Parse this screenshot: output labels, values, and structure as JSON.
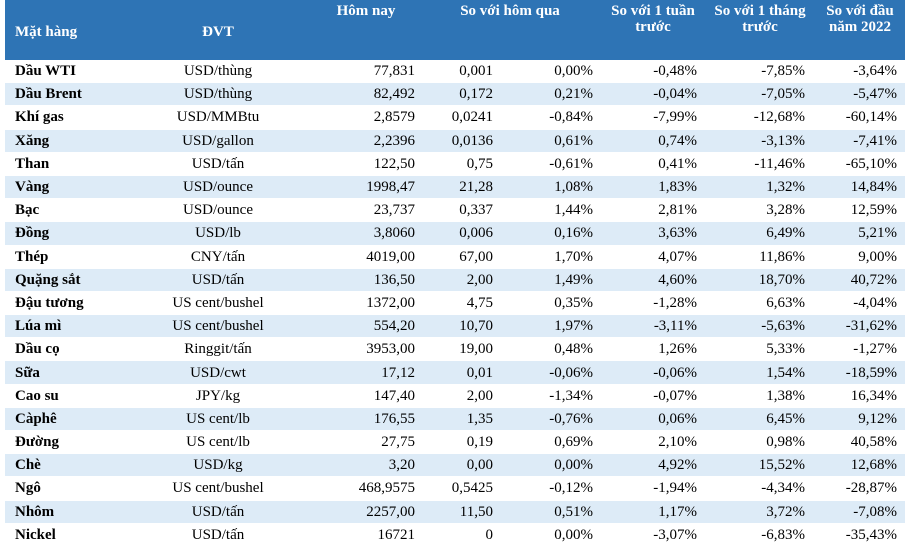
{
  "table": {
    "headers": {
      "item": "Mặt hàng",
      "unit": "ĐVT",
      "today": "Hôm nay",
      "vs_yesterday": "So với hôm qua",
      "vs_week": "So với 1 tuần trước",
      "vs_month": "So với 1 tháng trước",
      "vs_ytd": "So với đầu năm 2022"
    },
    "rows": [
      {
        "name": "Dầu WTI",
        "unit": "USD/thùng",
        "today": "77,831",
        "change": "0,001",
        "change_pct": "0,00%",
        "week": "-0,48%",
        "month": "-7,85%",
        "ytd": "-3,64%",
        "up": true
      },
      {
        "name": "Dầu Brent",
        "unit": "USD/thùng",
        "today": "82,492",
        "change": "0,172",
        "change_pct": "0,21%",
        "week": "-0,04%",
        "month": "-7,05%",
        "ytd": "-5,47%",
        "up": true
      },
      {
        "name": "Khí gas",
        "unit": "USD/MMBtu",
        "today": "2,8579",
        "change": "0,0241",
        "change_pct": "-0,84%",
        "week": "-7,99%",
        "month": "-12,68%",
        "ytd": "-60,14%",
        "up": false
      },
      {
        "name": "Xăng",
        "unit": "USD/gallon",
        "today": "2,2396",
        "change": "0,0136",
        "change_pct": "0,61%",
        "week": "0,74%",
        "month": "-3,13%",
        "ytd": "-7,41%",
        "up": true
      },
      {
        "name": "Than",
        "unit": "USD/tấn",
        "today": "122,50",
        "change": "0,75",
        "change_pct": "-0,61%",
        "week": "0,41%",
        "month": "-11,46%",
        "ytd": "-65,10%",
        "up": false
      },
      {
        "name": "Vàng",
        "unit": "USD/ounce",
        "today": "1998,47",
        "change": "21,28",
        "change_pct": "1,08%",
        "week": "1,83%",
        "month": "1,32%",
        "ytd": "14,84%",
        "up": true
      },
      {
        "name": "Bạc",
        "unit": "USD/ounce",
        "today": "23,737",
        "change": "0,337",
        "change_pct": "1,44%",
        "week": "2,81%",
        "month": "3,28%",
        "ytd": "12,59%",
        "up": true
      },
      {
        "name": "Đồng",
        "unit": "USD/lb",
        "today": "3,8060",
        "change": "0,006",
        "change_pct": "0,16%",
        "week": "3,63%",
        "month": "6,49%",
        "ytd": "5,21%",
        "up": true
      },
      {
        "name": "Thép",
        "unit": "CNY/tấn",
        "today": "4019,00",
        "change": "67,00",
        "change_pct": "1,70%",
        "week": "4,07%",
        "month": "11,86%",
        "ytd": "9,00%",
        "up": false
      },
      {
        "name": "Quặng sắt",
        "unit": "USD/tấn",
        "today": "136,50",
        "change": "2,00",
        "change_pct": "1,49%",
        "week": "4,60%",
        "month": "18,70%",
        "ytd": "40,72%",
        "up": false
      },
      {
        "name": "Đậu tương",
        "unit": "US cent/bushel",
        "today": "1372,00",
        "change": "4,75",
        "change_pct": "0,35%",
        "week": "-1,28%",
        "month": "6,63%",
        "ytd": "-4,04%",
        "up": false
      },
      {
        "name": "Lúa mì",
        "unit": "US cent/bushel",
        "today": "554,20",
        "change": "10,70",
        "change_pct": "1,97%",
        "week": "-3,11%",
        "month": "-5,63%",
        "ytd": "-31,62%",
        "up": false
      },
      {
        "name": "Dầu cọ",
        "unit": "Ringgit/tấn",
        "today": "3953,00",
        "change": "19,00",
        "change_pct": "0,48%",
        "week": "1,26%",
        "month": "5,33%",
        "ytd": "-1,27%",
        "up": false
      },
      {
        "name": "Sữa",
        "unit": "USD/cwt",
        "today": "17,12",
        "change": "0,01",
        "change_pct": "-0,06%",
        "week": "-0,06%",
        "month": "1,54%",
        "ytd": "-18,59%",
        "up": false
      },
      {
        "name": "Cao su",
        "unit": "JPY/kg",
        "today": "147,40",
        "change": "2,00",
        "change_pct": "-1,34%",
        "week": "-0,07%",
        "month": "1,38%",
        "ytd": "16,34%",
        "up": false
      },
      {
        "name": "Càphê",
        "unit": "US cent/lb",
        "today": "176,55",
        "change": "1,35",
        "change_pct": "-0,76%",
        "week": "0,06%",
        "month": "6,45%",
        "ytd": "9,12%",
        "up": false
      },
      {
        "name": "Đường",
        "unit": "US cent/lb",
        "today": "27,75",
        "change": "0,19",
        "change_pct": "0,69%",
        "week": "2,10%",
        "month": "0,98%",
        "ytd": "40,58%",
        "up": false
      },
      {
        "name": "Chè",
        "unit": "USD/kg",
        "today": "3,20",
        "change": "0,00",
        "change_pct": "0,00%",
        "week": "4,92%",
        "month": "15,52%",
        "ytd": "12,68%",
        "up": false
      },
      {
        "name": "Ngô",
        "unit": "US cent/bushel",
        "today": "468,9575",
        "change": "0,5425",
        "change_pct": "-0,12%",
        "week": "-1,94%",
        "month": "-4,34%",
        "ytd": "-28,87%",
        "up": false
      },
      {
        "name": "Nhôm",
        "unit": "USD/tấn",
        "today": "2257,00",
        "change": "11,50",
        "change_pct": "0,51%",
        "week": "1,17%",
        "month": "3,72%",
        "ytd": "-7,08%",
        "up": false
      },
      {
        "name": "Nickel",
        "unit": "USD/tấn",
        "today": "16721",
        "change": "0",
        "change_pct": "0,00%",
        "week": "-3,07%",
        "month": "-6,83%",
        "ytd": "-35,43%",
        "up": false
      }
    ]
  },
  "colors": {
    "header_bg": "#2e74b5",
    "stripe": "#ddebf7",
    "positive": "#2e7d32"
  }
}
